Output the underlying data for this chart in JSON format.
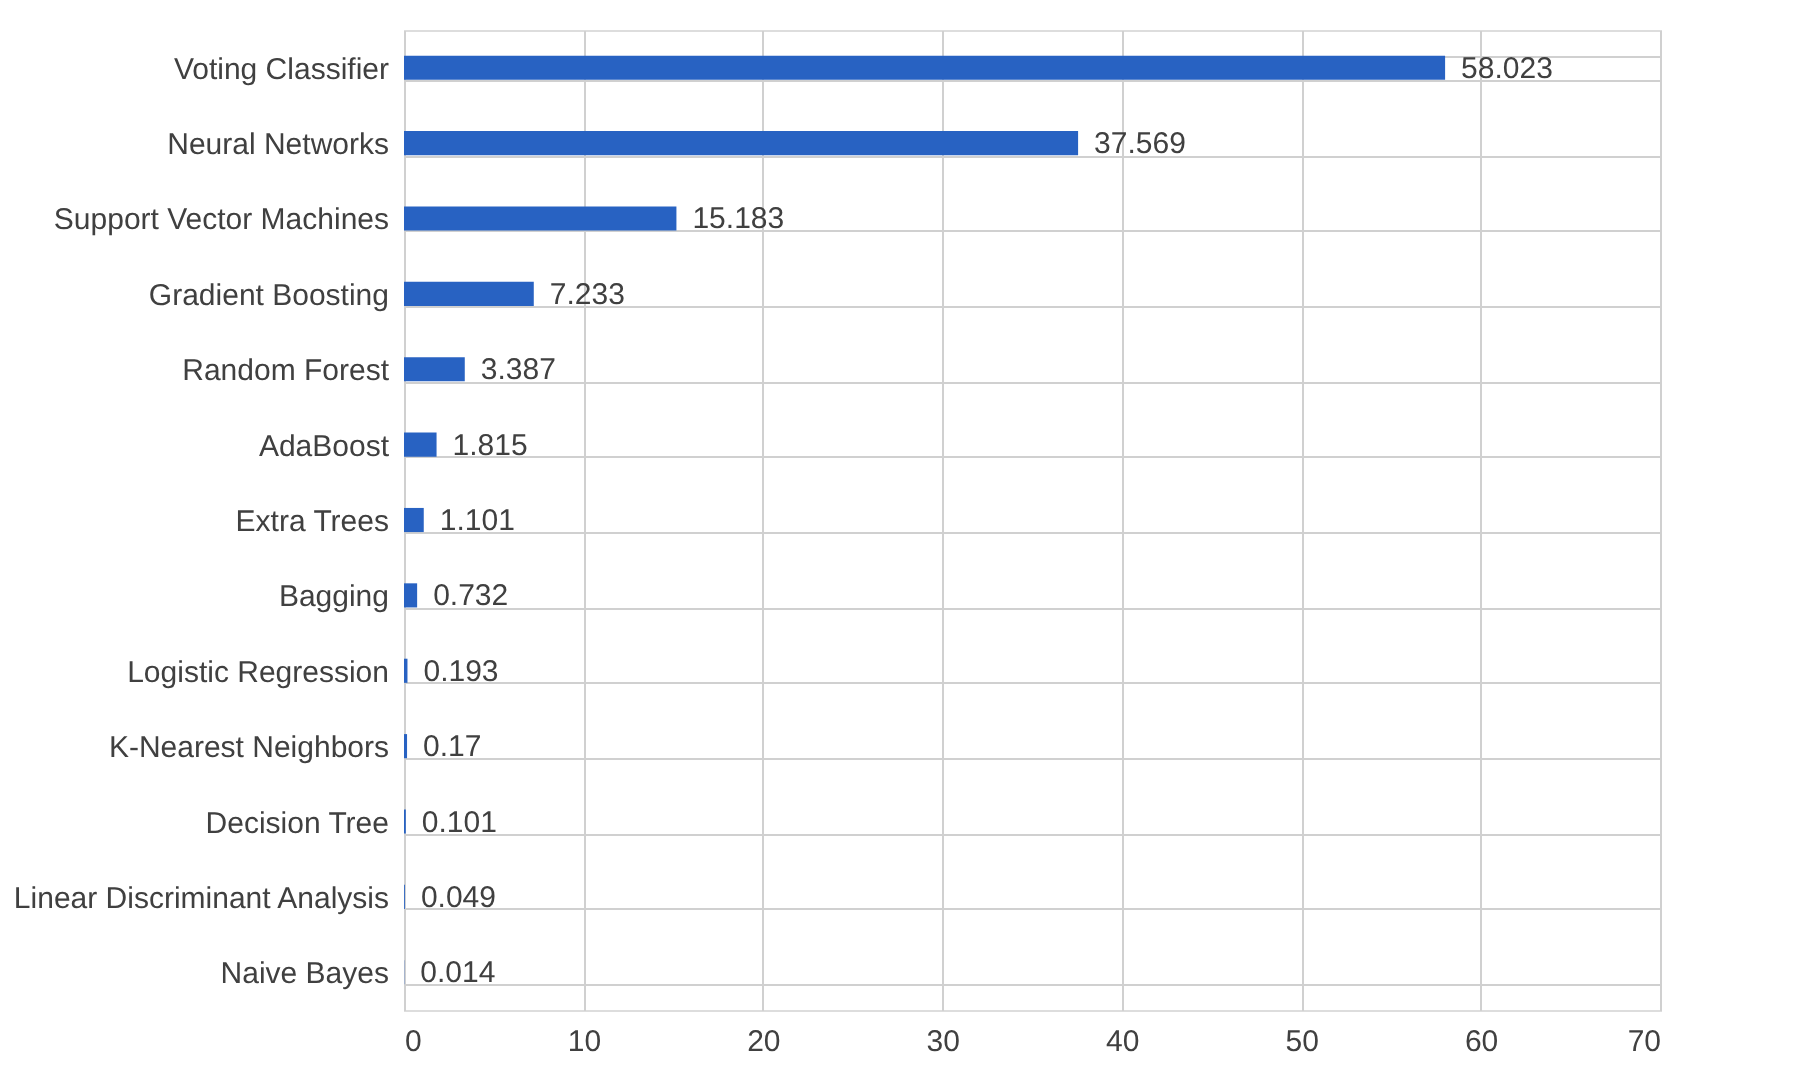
{
  "chart_data": {
    "type": "bar",
    "orientation": "horizontal",
    "categories": [
      "Voting Classifier",
      "Neural Networks",
      "Support Vector Machines",
      "Gradient Boosting",
      "Random Forest",
      "AdaBoost",
      "Extra Trees",
      "Bagging",
      "Logistic Regression",
      "K-Nearest Neighbors",
      "Decision Tree",
      "Linear Discriminant Analysis",
      "Naive Bayes"
    ],
    "values": [
      58.023,
      37.569,
      15.183,
      7.233,
      3.387,
      1.815,
      1.101,
      0.732,
      0.193,
      0.17,
      0.101,
      0.049,
      0.014
    ],
    "color": "#2862c2",
    "xlim": [
      0,
      70
    ],
    "xticks": [
      0,
      10,
      20,
      30,
      40,
      50,
      60,
      70
    ],
    "grid": true,
    "data_labels": true
  }
}
